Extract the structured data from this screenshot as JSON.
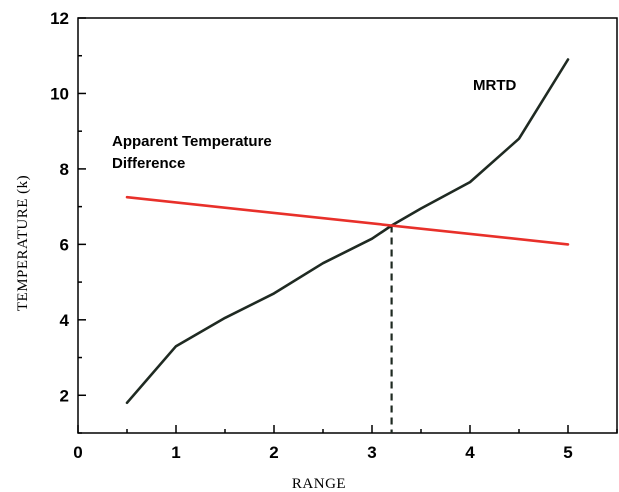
{
  "chart_data": {
    "type": "line",
    "xlabel": "RANGE",
    "ylabel": "TEMPERATURE (k)",
    "xlim": [
      0,
      5.5
    ],
    "ylim": [
      1,
      12
    ],
    "x_ticks": [
      0,
      1,
      2,
      3,
      4,
      5
    ],
    "y_ticks": [
      2,
      4,
      6,
      8,
      10,
      12
    ],
    "grid": false,
    "series": [
      {
        "name": "MRTD",
        "color": "#1f2a22",
        "x": [
          0.5,
          1.0,
          1.5,
          2.0,
          2.5,
          3.0,
          3.2,
          3.5,
          4.0,
          4.5,
          5.0
        ],
        "y": [
          1.8,
          3.3,
          4.05,
          4.7,
          5.5,
          6.15,
          6.5,
          6.95,
          7.65,
          8.8,
          10.9
        ]
      },
      {
        "name": "Apparent Temperature Difference",
        "color": "#e8302a",
        "x": [
          0.5,
          5.0
        ],
        "y": [
          7.25,
          6.0
        ]
      }
    ],
    "annotations": {
      "mrtd_label": "MRTD",
      "atd_label_line1": "Apparent Temperature",
      "atd_label_line2": "Difference"
    },
    "intersection": {
      "x": 3.2,
      "y": 6.5
    }
  }
}
